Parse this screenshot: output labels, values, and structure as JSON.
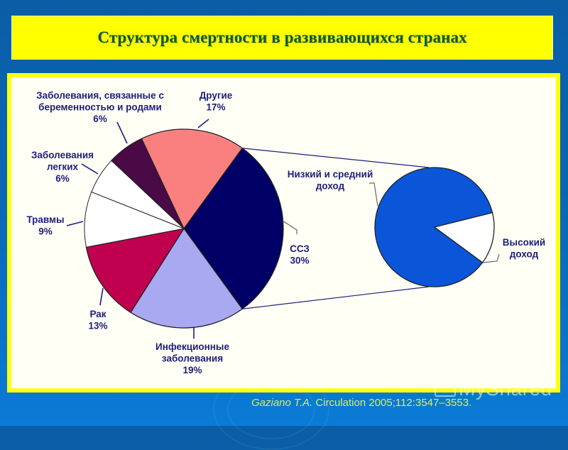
{
  "slide": {
    "title": "Структура смертности в развивающихся странах",
    "citation_author": "Gaziano T.A.",
    "citation_rest": " Circulation 2005;112:3547–3553.",
    "watermark": "MyShared"
  },
  "colors": {
    "background": "#0a66b4",
    "banner": "#ffff00",
    "title_text": "#0d5a3c",
    "label_text": "#1e1e7a",
    "citation_text": "#d8f060"
  },
  "chart_data": [
    {
      "type": "pie",
      "title": "Структура смертности в развивающихся странах",
      "categories": [
        "ССЗ",
        "Инфекционные заболевания",
        "Рак",
        "Травмы",
        "Заболевания легких",
        "Заболевания, связанные с беременностью и родами",
        "Другие"
      ],
      "values": [
        30,
        19,
        13,
        9,
        6,
        6,
        17
      ],
      "unit": "%",
      "colors": [
        "#000066",
        "#a9a9f2",
        "#c0004e",
        "#ffffff",
        "#ffffff",
        "#4a0a46",
        "#fa8080"
      ],
      "labels": [
        {
          "lines": [
            "ССЗ",
            "30%"
          ]
        },
        {
          "lines": [
            "Инфекционные",
            "заболевания",
            "19%"
          ]
        },
        {
          "lines": [
            "Рак",
            "13%"
          ]
        },
        {
          "lines": [
            "Травмы",
            "9%"
          ]
        },
        {
          "lines": [
            "Заболевания",
            "легких",
            "6%"
          ]
        },
        {
          "lines": [
            "Заболевания, связанные с",
            "беременностью и родами",
            "6%"
          ]
        },
        {
          "lines": [
            "Другие",
            "17%"
          ]
        }
      ],
      "legend": "none (callout labels)"
    },
    {
      "type": "pie",
      "title": "Breakdown of ССЗ slice",
      "categories": [
        "Низкий и средний доход",
        "Высокий доход"
      ],
      "values": [
        86,
        14
      ],
      "unit": "%",
      "values_note": "proportions estimated from slice angles; not labeled",
      "colors": [
        "#0a55d8",
        "#ffffff"
      ],
      "labels": [
        {
          "lines": [
            "Низкий и средний",
            "доход"
          ]
        },
        {
          "lines": [
            "Высокий",
            "доход"
          ]
        }
      ]
    }
  ]
}
